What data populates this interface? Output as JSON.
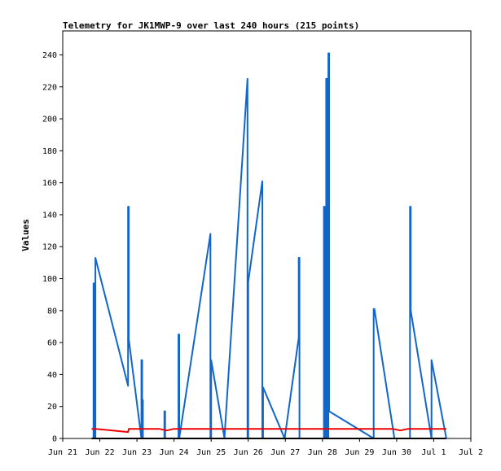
{
  "chart_data": {
    "type": "line",
    "title": "Telemetry for JK1MWP-9 over last 240 hours (215 points)",
    "ylabel": "Values",
    "xlabel": "",
    "ylim": [
      0,
      255
    ],
    "xlim": [
      0,
      11
    ],
    "y_ticks": [
      0,
      20,
      40,
      60,
      80,
      100,
      120,
      140,
      160,
      180,
      200,
      220,
      240
    ],
    "x_ticks": [
      {
        "label": "Jun 21",
        "x": 0
      },
      {
        "label": "Jun 22",
        "x": 1
      },
      {
        "label": "Jun 23",
        "x": 2
      },
      {
        "label": "Jun 24",
        "x": 3
      },
      {
        "label": "Jun 25",
        "x": 4
      },
      {
        "label": "Jun 26",
        "x": 5
      },
      {
        "label": "Jun 27",
        "x": 6
      },
      {
        "label": "Jun 28",
        "x": 7
      },
      {
        "label": "Jun 29",
        "x": 8
      },
      {
        "label": "Jun 30",
        "x": 9
      },
      {
        "label": "Jul 1",
        "x": 10
      },
      {
        "label": "Jul 2",
        "x": 11
      }
    ],
    "grid": false,
    "series": [
      {
        "color": "#1166cc",
        "points": [
          [
            0.83,
            0
          ],
          [
            0.83,
            97
          ],
          [
            0.85,
            97
          ],
          [
            0.85,
            0
          ],
          [
            0.88,
            0
          ],
          [
            0.88,
            113
          ],
          [
            1.76,
            33
          ],
          [
            1.76,
            145
          ],
          [
            1.78,
            145
          ],
          [
            1.78,
            62
          ],
          [
            2.12,
            0
          ],
          [
            2.12,
            49
          ],
          [
            2.14,
            49
          ],
          [
            2.14,
            24
          ],
          [
            2.16,
            24
          ],
          [
            2.16,
            0
          ],
          [
            2.74,
            0
          ],
          [
            2.74,
            17
          ],
          [
            2.76,
            17
          ],
          [
            2.76,
            0
          ],
          [
            3.12,
            0
          ],
          [
            3.12,
            65
          ],
          [
            3.14,
            65
          ],
          [
            3.14,
            0
          ],
          [
            3.98,
            128
          ],
          [
            3.98,
            0
          ],
          [
            4.0,
            0
          ],
          [
            4.0,
            49
          ],
          [
            4.36,
            0
          ],
          [
            4.36,
            1
          ],
          [
            4.98,
            225
          ],
          [
            4.98,
            0
          ],
          [
            5.0,
            0
          ],
          [
            5.0,
            98
          ],
          [
            5.38,
            161
          ],
          [
            5.38,
            0
          ],
          [
            5.4,
            0
          ],
          [
            5.4,
            32
          ],
          [
            5.98,
            0
          ],
          [
            6.36,
            63
          ],
          [
            6.36,
            113
          ],
          [
            6.38,
            113
          ],
          [
            6.38,
            0
          ],
          [
            7.04,
            0
          ],
          [
            7.04,
            145
          ],
          [
            7.06,
            145
          ],
          [
            7.06,
            0
          ],
          [
            7.1,
            0
          ],
          [
            7.1,
            225
          ],
          [
            7.12,
            225
          ],
          [
            7.12,
            0
          ],
          [
            7.16,
            0
          ],
          [
            7.16,
            241
          ],
          [
            7.18,
            241
          ],
          [
            7.18,
            17
          ],
          [
            8.38,
            0
          ],
          [
            8.38,
            81
          ],
          [
            8.4,
            81
          ],
          [
            8.94,
            0
          ],
          [
            9.36,
            0
          ],
          [
            9.36,
            145
          ],
          [
            9.38,
            145
          ],
          [
            9.38,
            80
          ],
          [
            9.94,
            0
          ],
          [
            9.94,
            49
          ],
          [
            10.34,
            0
          ]
        ]
      },
      {
        "color": "#ee0000",
        "points": [
          [
            0.78,
            6
          ],
          [
            0.88,
            6
          ],
          [
            1.76,
            4
          ],
          [
            1.78,
            6
          ],
          [
            2.6,
            6
          ],
          [
            2.8,
            5
          ],
          [
            3.0,
            6
          ],
          [
            4.0,
            6
          ],
          [
            5.0,
            6
          ],
          [
            6.0,
            6
          ],
          [
            7.0,
            6
          ],
          [
            8.0,
            6
          ],
          [
            8.9,
            6
          ],
          [
            9.1,
            5
          ],
          [
            9.3,
            6
          ],
          [
            10.0,
            6
          ],
          [
            10.34,
            6
          ]
        ]
      },
      {
        "color": "#000000",
        "points": [
          [
            0.78,
            0
          ],
          [
            10.34,
            0
          ]
        ]
      }
    ]
  }
}
